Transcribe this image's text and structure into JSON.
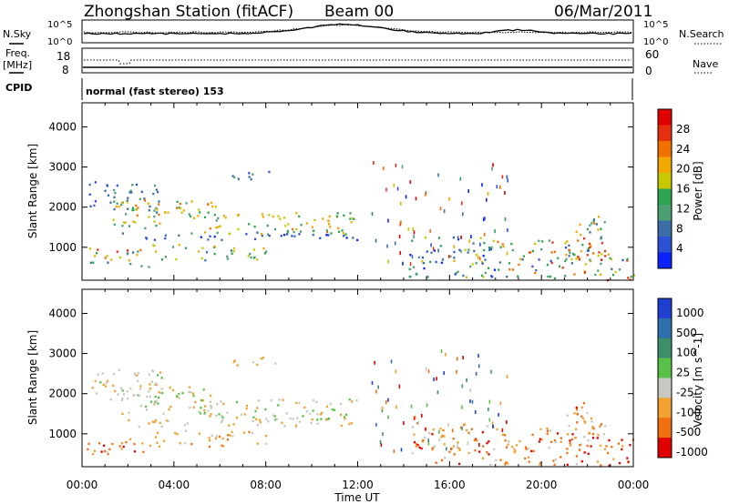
{
  "header": {
    "station": "Zhongshan Station (fitACF)",
    "beam": "Beam 00",
    "date": "06/Mar/2011"
  },
  "panel_labels": {
    "nsky": "N.Sky",
    "nsky_ticks": [
      "10^5",
      "10^0"
    ],
    "nsearch": "N.Search",
    "nsearch_ticks": [
      "10^5",
      "10^0"
    ],
    "freq": "Freq.",
    "freq_unit": "[MHz]",
    "freq_ticks": [
      "18",
      "8"
    ],
    "nave": "Nave",
    "nave_ticks": [
      "60",
      "0"
    ],
    "cpid": "CPID",
    "cpid_text": "normal (fast stereo) 153"
  },
  "axes": {
    "ylabel": "Slant Range [km]",
    "xlabel": "Time UT",
    "yticks": [
      "1000",
      "2000",
      "3000",
      "4000"
    ],
    "xticks": [
      "00:00",
      "04:00",
      "08:00",
      "12:00",
      "16:00",
      "20:00",
      "00:00"
    ]
  },
  "colorbars": {
    "power": {
      "label": "Power [dB]",
      "ticks": [
        "4",
        "8",
        "12",
        "16",
        "20",
        "24",
        "28"
      ],
      "colors": [
        "#0a23ff",
        "#2e52d6",
        "#3a6ea5",
        "#4b9f73",
        "#2ea44f",
        "#c8c800",
        "#f2a800",
        "#f07000",
        "#e83010",
        "#e00000"
      ]
    },
    "velocity": {
      "label": "Velocity [m s^-1]",
      "ticks": [
        "1000",
        "500",
        "100",
        "25",
        "-25",
        "-100",
        "-500",
        "-1000"
      ],
      "colors": [
        "#1f3fd0",
        "#2f6fb0",
        "#3e8e6a",
        "#58c248",
        "#c8c8c0",
        "#f2a030",
        "#f07010",
        "#e00000"
      ]
    }
  },
  "chart_data": [
    {
      "type": "heatmap",
      "name": "power",
      "x_range_hours": [
        0,
        24
      ],
      "y_range_km": [
        180,
        4600
      ],
      "regions": [
        {
          "t": [
            0.3,
            3.5
          ],
          "r": [
            1850,
            2650
          ],
          "lvl": [
            1,
            3
          ]
        },
        {
          "t": [
            1.2,
            6.0
          ],
          "r": [
            1500,
            2200
          ],
          "lvl": [
            3,
            7
          ]
        },
        {
          "t": [
            5.0,
            12.0
          ],
          "r": [
            1350,
            1900
          ],
          "lvl": [
            3,
            7
          ]
        },
        {
          "t": [
            1.5,
            12.0
          ],
          "r": [
            1200,
            1400
          ],
          "lvl": [
            0,
            3
          ]
        },
        {
          "t": [
            0.2,
            3.0
          ],
          "r": [
            500,
            1000
          ],
          "lvl": [
            2,
            8
          ]
        },
        {
          "t": [
            3.0,
            8.0
          ],
          "r": [
            700,
            1100
          ],
          "lvl": [
            2,
            6
          ]
        },
        {
          "t": [
            6.5,
            8.5
          ],
          "r": [
            2700,
            2950
          ],
          "lvl": [
            1,
            4
          ]
        },
        {
          "t": [
            14.2,
            18.0
          ],
          "r": [
            250,
            1300
          ],
          "lvl": [
            0,
            6
          ]
        },
        {
          "t": [
            18.0,
            22.5
          ],
          "r": [
            250,
            1200
          ],
          "lvl": [
            1,
            8
          ]
        },
        {
          "t": [
            21.0,
            22.8
          ],
          "r": [
            700,
            1800
          ],
          "lvl": [
            2,
            9
          ]
        },
        {
          "t": [
            22.5,
            24.0
          ],
          "r": [
            200,
            900
          ],
          "lvl": [
            1,
            9
          ]
        }
      ]
    },
    {
      "type": "heatmap",
      "name": "velocity",
      "x_range_hours": [
        0,
        24
      ],
      "y_range_km": [
        180,
        4600
      ],
      "regions": [
        {
          "t": [
            0.3,
            3.5
          ],
          "r": [
            1850,
            2650
          ],
          "lvl": [
            3,
            5
          ]
        },
        {
          "t": [
            1.2,
            6.0
          ],
          "r": [
            1500,
            2200
          ],
          "lvl": [
            3,
            5
          ]
        },
        {
          "t": [
            5.0,
            12.0
          ],
          "r": [
            1350,
            1900
          ],
          "lvl": [
            3,
            5
          ]
        },
        {
          "t": [
            1.5,
            12.0
          ],
          "r": [
            1200,
            1400
          ],
          "lvl": [
            4,
            5
          ]
        },
        {
          "t": [
            0.2,
            3.0
          ],
          "r": [
            500,
            1000
          ],
          "lvl": [
            4,
            7
          ]
        },
        {
          "t": [
            3.0,
            8.0
          ],
          "r": [
            700,
            1100
          ],
          "lvl": [
            4,
            6
          ]
        },
        {
          "t": [
            6.5,
            8.5
          ],
          "r": [
            2700,
            2950
          ],
          "lvl": [
            4,
            5
          ]
        },
        {
          "t": [
            14.2,
            18.0
          ],
          "r": [
            250,
            1300
          ],
          "lvl": [
            4,
            7
          ]
        },
        {
          "t": [
            18.0,
            22.5
          ],
          "r": [
            250,
            1200
          ],
          "lvl": [
            4,
            7
          ]
        },
        {
          "t": [
            21.0,
            22.8
          ],
          "r": [
            700,
            1800
          ],
          "lvl": [
            4,
            7
          ]
        },
        {
          "t": [
            22.5,
            24.0
          ],
          "r": [
            200,
            900
          ],
          "lvl": [
            5,
            7
          ]
        }
      ]
    }
  ]
}
